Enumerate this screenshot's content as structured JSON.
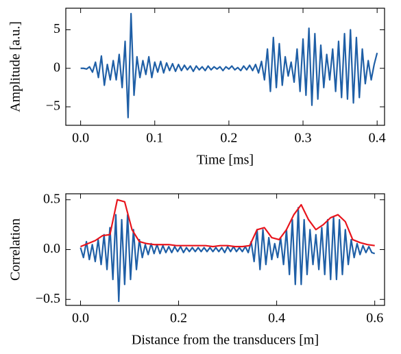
{
  "chart_data": [
    {
      "type": "line",
      "xlabel": "Time [ms]",
      "ylabel": "Amplitude [a.u.]",
      "xlim": [
        -0.02,
        0.41
      ],
      "ylim": [
        -7.4,
        7.8
      ],
      "xticks": [
        {
          "value": 0,
          "label": "0.0"
        },
        0.1,
        0.2,
        0.3,
        0.4
      ],
      "yticks": [
        {
          "value": -5,
          "label": "−5"
        },
        0,
        5
      ],
      "series": [
        {
          "color": "#1f5fa6",
          "x": [
            0,
            0.004,
            0.008,
            0.012,
            0.016,
            0.02,
            0.024,
            0.028,
            0.032,
            0.036,
            0.04,
            0.044,
            0.048,
            0.052,
            0.056,
            0.06,
            0.064,
            0.068,
            0.072,
            0.076,
            0.08,
            0.084,
            0.088,
            0.092,
            0.096,
            0.1,
            0.104,
            0.108,
            0.112,
            0.116,
            0.12,
            0.124,
            0.128,
            0.132,
            0.136,
            0.14,
            0.144,
            0.148,
            0.152,
            0.156,
            0.16,
            0.164,
            0.168,
            0.172,
            0.176,
            0.18,
            0.184,
            0.188,
            0.192,
            0.196,
            0.2,
            0.204,
            0.208,
            0.212,
            0.216,
            0.22,
            0.224,
            0.228,
            0.232,
            0.236,
            0.24,
            0.244,
            0.248,
            0.252,
            0.256,
            0.26,
            0.264,
            0.268,
            0.272,
            0.276,
            0.28,
            0.284,
            0.288,
            0.292,
            0.296,
            0.3,
            0.304,
            0.308,
            0.312,
            0.316,
            0.32,
            0.324,
            0.328,
            0.332,
            0.336,
            0.34,
            0.344,
            0.348,
            0.352,
            0.356,
            0.36,
            0.364,
            0.368,
            0.372,
            0.376,
            0.38,
            0.384,
            0.388,
            0.392,
            0.396,
            0.4
          ],
          "values": [
            0,
            0,
            -0.1,
            0.2,
            -0.5,
            0.8,
            -1.2,
            1.6,
            -2.2,
            0.5,
            -1.5,
            1.0,
            -1.5,
            1.8,
            -2.5,
            3.5,
            -6.4,
            7.1,
            -3.5,
            1.5,
            -1.2,
            1.0,
            -0.8,
            1.5,
            -1.2,
            0.8,
            -0.5,
            0.9,
            -0.6,
            0.7,
            -0.3,
            0.6,
            -0.4,
            0.5,
            -0.3,
            0.4,
            -0.2,
            0.3,
            -0.4,
            0.3,
            -0.2,
            0.2,
            -0.3,
            0.3,
            -0.2,
            0.2,
            -0.1,
            0.2,
            -0.3,
            0.2,
            -0.1,
            0.3,
            -0.2,
            0.1,
            -0.3,
            0.3,
            -0.2,
            0.4,
            -0.3,
            0.5,
            -0.6,
            0.9,
            -1.5,
            2.5,
            -3.0,
            4.0,
            -2.5,
            3.2,
            -2.2,
            1.5,
            -1.0,
            0.8,
            -1.8,
            2.5,
            -3.0,
            3.8,
            -3.5,
            5.2,
            -4.8,
            4.5,
            -4.0,
            3.0,
            -2.5,
            1.8,
            -1.5,
            2.5,
            -3.0,
            3.5,
            -3.8,
            4.5,
            -4.0,
            5.0,
            -4.5,
            4.0,
            -3.8,
            2.5,
            -2.0,
            1.0,
            -1.5,
            0.5,
            2.0
          ]
        }
      ]
    },
    {
      "type": "line",
      "xlabel": "Distance from the transducers [m]",
      "ylabel": "Correlation",
      "xlim": [
        -0.03,
        0.62
      ],
      "ylim": [
        -0.56,
        0.56
      ],
      "xticks": [
        {
          "value": 0,
          "label": "0.0"
        },
        0.2,
        0.4,
        0.6
      ],
      "yticks": [
        {
          "value": -0.5,
          "label": "−0.5"
        },
        {
          "value": 0,
          "label": "0.0"
        },
        0.5
      ],
      "series": [
        {
          "color": "#1f5fa6",
          "x": [
            0,
            0.006,
            0.012,
            0.018,
            0.024,
            0.03,
            0.036,
            0.042,
            0.048,
            0.054,
            0.06,
            0.066,
            0.072,
            0.078,
            0.084,
            0.09,
            0.096,
            0.102,
            0.108,
            0.114,
            0.12,
            0.126,
            0.132,
            0.138,
            0.144,
            0.15,
            0.156,
            0.162,
            0.168,
            0.174,
            0.18,
            0.186,
            0.192,
            0.198,
            0.204,
            0.21,
            0.216,
            0.222,
            0.228,
            0.234,
            0.24,
            0.246,
            0.252,
            0.258,
            0.264,
            0.27,
            0.276,
            0.282,
            0.288,
            0.294,
            0.3,
            0.306,
            0.312,
            0.318,
            0.324,
            0.33,
            0.336,
            0.342,
            0.348,
            0.354,
            0.36,
            0.366,
            0.372,
            0.378,
            0.384,
            0.39,
            0.396,
            0.402,
            0.408,
            0.414,
            0.42,
            0.426,
            0.432,
            0.438,
            0.444,
            0.45,
            0.456,
            0.462,
            0.468,
            0.474,
            0.48,
            0.486,
            0.492,
            0.498,
            0.504,
            0.51,
            0.516,
            0.522,
            0.528,
            0.534,
            0.54,
            0.546,
            0.552,
            0.558,
            0.564,
            0.57,
            0.576,
            0.582,
            0.588,
            0.594,
            0.6
          ],
          "values": [
            0.02,
            -0.08,
            0.08,
            -0.1,
            0.05,
            -0.12,
            0.1,
            -0.15,
            0.15,
            -0.2,
            0.22,
            -0.3,
            0.35,
            -0.52,
            0.3,
            -0.35,
            0.35,
            -0.3,
            0.2,
            -0.2,
            0.1,
            -0.08,
            0.05,
            -0.05,
            0.06,
            -0.04,
            0.05,
            -0.04,
            0.04,
            -0.03,
            0.03,
            -0.03,
            0.03,
            -0.02,
            0.03,
            -0.03,
            0.02,
            -0.02,
            0.02,
            -0.02,
            0.02,
            -0.02,
            0.02,
            -0.02,
            0.02,
            -0.02,
            0.02,
            -0.02,
            0.02,
            -0.03,
            0.03,
            -0.02,
            0.03,
            -0.02,
            0.02,
            -0.02,
            0.03,
            -0.03,
            0.08,
            -0.12,
            0.2,
            -0.2,
            0.2,
            -0.15,
            0.12,
            -0.1,
            0.06,
            -0.08,
            0.12,
            -0.15,
            0.2,
            -0.25,
            0.3,
            -0.35,
            0.42,
            -0.35,
            0.3,
            -0.25,
            0.2,
            -0.15,
            0.15,
            -0.2,
            0.22,
            -0.25,
            0.3,
            -0.3,
            0.33,
            -0.3,
            0.3,
            -0.25,
            0.2,
            -0.15,
            0.1,
            -0.08,
            0.06,
            -0.05,
            0.04,
            -0.03,
            0.03,
            -0.03,
            -0.04
          ]
        },
        {
          "color": "#e8141c",
          "x": [
            0,
            0.015,
            0.03,
            0.045,
            0.06,
            0.075,
            0.09,
            0.105,
            0.12,
            0.135,
            0.15,
            0.165,
            0.18,
            0.195,
            0.21,
            0.225,
            0.24,
            0.255,
            0.27,
            0.285,
            0.3,
            0.315,
            0.33,
            0.345,
            0.36,
            0.375,
            0.39,
            0.405,
            0.42,
            0.435,
            0.45,
            0.465,
            0.48,
            0.495,
            0.51,
            0.525,
            0.54,
            0.555,
            0.57,
            0.585,
            0.6
          ],
          "values": [
            0.03,
            0.06,
            0.09,
            0.14,
            0.15,
            0.5,
            0.48,
            0.2,
            0.08,
            0.06,
            0.05,
            0.05,
            0.05,
            0.04,
            0.04,
            0.04,
            0.04,
            0.04,
            0.03,
            0.04,
            0.04,
            0.03,
            0.03,
            0.04,
            0.2,
            0.22,
            0.12,
            0.1,
            0.2,
            0.35,
            0.45,
            0.3,
            0.2,
            0.25,
            0.32,
            0.35,
            0.28,
            0.1,
            0.07,
            0.05,
            0.04
          ]
        }
      ]
    }
  ]
}
